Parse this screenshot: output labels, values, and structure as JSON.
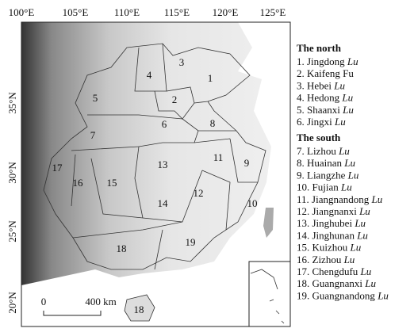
{
  "longitudes": [
    "100°E",
    "105°E",
    "110°E",
    "115°E",
    "120°E",
    "125°E"
  ],
  "latitudes": [
    "35°N",
    "30°N",
    "25°N",
    "20°N"
  ],
  "regions": [
    "1",
    "2",
    "3",
    "4",
    "5",
    "6",
    "7",
    "8",
    "9",
    "10",
    "11",
    "12",
    "13",
    "14",
    "15",
    "16",
    "17",
    "18",
    "19",
    "18"
  ],
  "scale": {
    "start": "0",
    "end": "400 km"
  },
  "legend": {
    "north_title": "The north",
    "north": [
      {
        "label": "1. Jingdong",
        "italic": "Lu"
      },
      {
        "label": "2. Kaifeng Fu"
      },
      {
        "label": "3. Hebei",
        "italic": "Lu"
      },
      {
        "label": "4. Hedong",
        "italic": "Lu"
      },
      {
        "label": "5. Shaanxi",
        "italic": "Lu"
      },
      {
        "label": "6. Jingxi",
        "italic": "Lu"
      }
    ],
    "south_title": "The south",
    "south": [
      {
        "label": "7. Lizhou",
        "italic": "Lu"
      },
      {
        "label": "8. Huainan",
        "italic": "Lu"
      },
      {
        "label": "9. Liangzhe",
        "italic": "Lu"
      },
      {
        "label": "10. Fujian",
        "italic": "Lu"
      },
      {
        "label": "11. Jiangnandong",
        "italic": "Lu"
      },
      {
        "label": "12. Jiangnanxi",
        "italic": "Lu"
      },
      {
        "label": "13. Jinghubei",
        "italic": "Lu"
      },
      {
        "label": "14. Jinghunan",
        "italic": "Lu"
      },
      {
        "label": "15. Kuizhou",
        "italic": "Lu"
      },
      {
        "label": "16. Zizhou",
        "italic": "Lu"
      },
      {
        "label": "17. Chengdufu",
        "italic": "Lu"
      },
      {
        "label": "18. Guangnanxi",
        "italic": "Lu"
      },
      {
        "label": "19. Guangnandong",
        "italic": "Lu"
      }
    ]
  }
}
